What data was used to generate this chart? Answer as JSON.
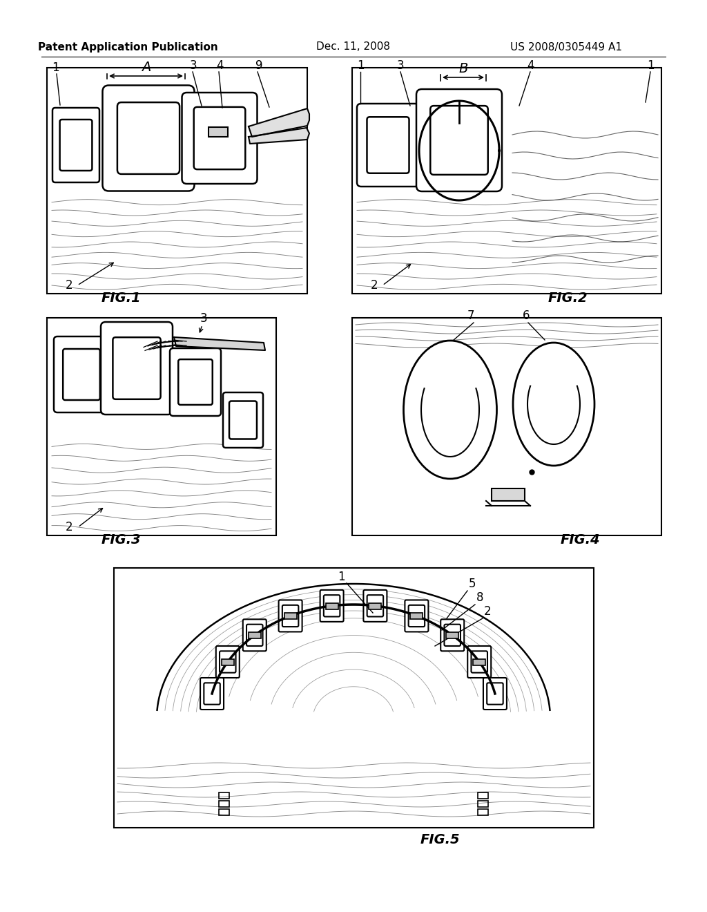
{
  "bg_color": "#ffffff",
  "header_left": "Patent Application Publication",
  "header_center": "Dec. 11, 2008",
  "header_right": "US 2008/0305449 A1",
  "fig1_label": "FIG.1",
  "fig2_label": "FIG.2",
  "fig3_label": "FIG.3",
  "fig4_label": "FIG.4",
  "fig5_label": "FIG.5",
  "line_color": "#000000",
  "text_color": "#000000",
  "header_font_size": 11,
  "fig_label_font_size": 14,
  "annotation_font_size": 12
}
